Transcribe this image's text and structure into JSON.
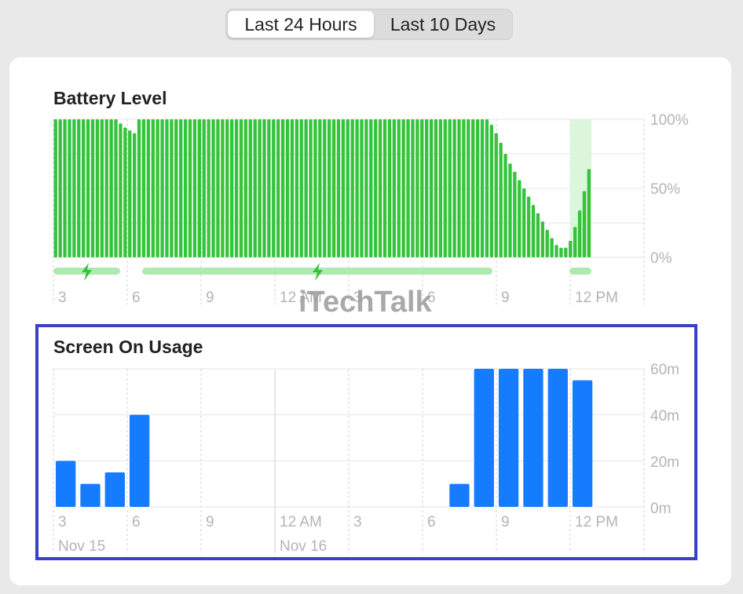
{
  "tabs": [
    {
      "label": "Last 24 Hours",
      "active": true
    },
    {
      "label": "Last 10 Days",
      "active": false
    }
  ],
  "watermark": "iTechTalk",
  "colors": {
    "battery_green": "#34c33a",
    "charging_bar": "#aeeaaf",
    "charging_band": "#dcf6dc",
    "usage_blue": "#157cff",
    "highlight_border": "#3a3fc8"
  },
  "battery": {
    "title": "Battery Level",
    "y_ticks": [
      "100%",
      "50%",
      "0%"
    ],
    "x_ticks": [
      "3",
      "6",
      "9",
      "12 AM",
      "3",
      "6",
      "9",
      "12 PM"
    ]
  },
  "usage": {
    "title": "Screen On Usage",
    "y_ticks": [
      "60m",
      "40m",
      "20m",
      "0m"
    ],
    "x_ticks": [
      "3",
      "6",
      "9",
      "12 AM",
      "3",
      "6",
      "9",
      "12 PM"
    ],
    "dates": [
      "Nov 15",
      "Nov 16"
    ]
  },
  "chart_data": [
    {
      "type": "bar",
      "title": "Battery Level",
      "ylabel": "",
      "ylim": [
        0,
        100
      ],
      "unit": "%",
      "x_tick_labels": [
        "3",
        "6",
        "9",
        "12 AM",
        "3",
        "6",
        "9",
        "12 PM"
      ],
      "values": [
        100,
        100,
        100,
        100,
        100,
        100,
        100,
        100,
        100,
        100,
        100,
        100,
        100,
        100,
        97,
        94,
        92,
        90,
        100,
        100,
        100,
        100,
        100,
        100,
        100,
        100,
        100,
        100,
        100,
        100,
        100,
        100,
        100,
        100,
        100,
        100,
        100,
        100,
        100,
        100,
        100,
        100,
        100,
        100,
        100,
        100,
        100,
        100,
        100,
        100,
        100,
        100,
        100,
        100,
        100,
        100,
        100,
        100,
        100,
        100,
        100,
        100,
        100,
        100,
        100,
        100,
        100,
        100,
        100,
        100,
        100,
        100,
        100,
        100,
        100,
        100,
        100,
        100,
        100,
        100,
        100,
        100,
        100,
        100,
        100,
        100,
        100,
        100,
        100,
        100,
        100,
        100,
        100,
        100,
        96,
        90,
        83,
        75,
        68,
        62,
        56,
        50,
        44,
        38,
        32,
        26,
        20,
        14,
        9,
        7,
        7,
        12,
        22,
        34,
        48,
        64
      ],
      "charging_periods": [
        "3 PM - 5:45 PM",
        "6:45 PM - 8:50 AM",
        "11:50 AM - 12:45 PM"
      ]
    },
    {
      "type": "bar",
      "title": "Screen On Usage",
      "ylabel": "",
      "ylim": [
        0,
        60
      ],
      "unit": "m",
      "x_tick_labels": [
        "3",
        "6",
        "9",
        "12 AM",
        "3",
        "6",
        "9",
        "12 PM"
      ],
      "x_date_labels": [
        "Nov 15",
        "Nov 16"
      ],
      "categories": [
        "3 PM",
        "4 PM",
        "5 PM",
        "6 PM",
        "7 PM",
        "8 PM",
        "9 PM",
        "10 PM",
        "11 PM",
        "12 AM",
        "1 AM",
        "2 AM",
        "3 AM",
        "4 AM",
        "5 AM",
        "6 AM",
        "7 AM",
        "8 AM",
        "9 AM",
        "10 AM",
        "11 AM",
        "12 PM"
      ],
      "values": [
        20,
        10,
        15,
        40,
        0,
        0,
        0,
        0,
        0,
        0,
        0,
        0,
        0,
        0,
        0,
        0,
        10,
        60,
        60,
        60,
        60,
        55
      ]
    }
  ]
}
